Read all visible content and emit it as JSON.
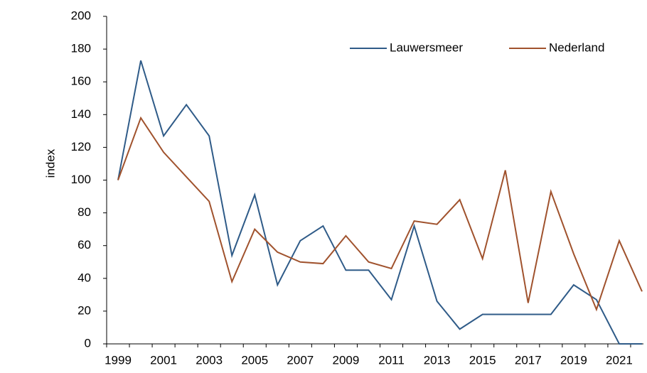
{
  "chart_data": {
    "type": "line",
    "ylabel": "index",
    "categories": [
      "1999",
      null,
      "2001",
      null,
      "2003",
      null,
      "2005",
      null,
      "2007",
      null,
      "2009",
      null,
      "2011",
      null,
      "2013",
      null,
      "2015",
      null,
      "2017",
      null,
      "2019",
      null,
      "2021",
      null
    ],
    "series": [
      {
        "name": "Lauwersmeer",
        "color": "#2f5b88",
        "values": [
          100,
          173,
          127,
          146,
          127,
          54,
          91,
          36,
          63,
          72,
          45,
          45,
          27,
          72,
          26,
          9,
          18,
          18,
          18,
          18,
          36,
          27,
          0,
          0
        ]
      },
      {
        "name": "Nederland",
        "color": "#a0522d",
        "values": [
          100,
          138,
          117,
          102,
          87,
          38,
          70,
          56,
          50,
          49,
          66,
          50,
          46,
          75,
          73,
          88,
          52,
          106,
          25,
          93,
          55,
          21,
          63,
          32
        ]
      }
    ],
    "ylim": [
      0,
      200
    ],
    "yticks": [
      0,
      20,
      40,
      60,
      80,
      100,
      120,
      140,
      160,
      180,
      200
    ],
    "grid": false,
    "legend": "top-right"
  }
}
